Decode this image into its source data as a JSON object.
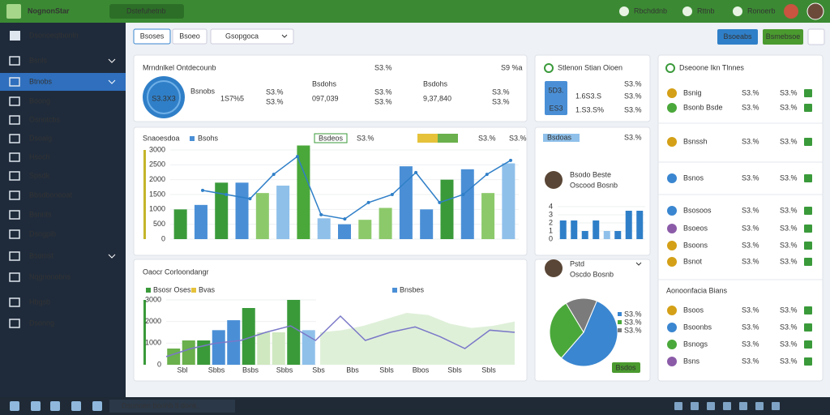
{
  "topbar": {
    "brand": "NognonStar",
    "selector": "Dstefuhetnb",
    "links": [
      "Rbchddnb",
      "Rttnb",
      "Ronoerb"
    ]
  },
  "sidebar": {
    "heading": "Dsonoeqtbonln",
    "items": [
      "Bsnls",
      "Btnobs",
      "Boong",
      "Osnotcbs",
      "Dsoalg",
      "Hsoch",
      "Spsdk",
      "Bbsdbonooat",
      "Bsnnts",
      "Dsngpib",
      "Bsomst",
      "Nqgnonobns",
      "Hbgsb",
      "Dsonng"
    ],
    "active": 1
  },
  "toolbar": {
    "tabs": [
      "Bsoses",
      "Bsoeo"
    ],
    "dropdown": "Gsopgoca",
    "buttons": [
      "Bsoeabs",
      "Bsmebsoe"
    ]
  },
  "kpi": {
    "title": "Mrndnlkel Ontdecounb",
    "donut_label": "S3.3X3",
    "stats": [
      {
        "label": "Bsnobs",
        "value": "1S7%5",
        "changes": [
          "S3.%",
          "S3.%"
        ]
      },
      {
        "label": "Bsdohs",
        "value": "097,039",
        "changes": [
          "S3.%",
          "S3.%"
        ],
        "top": "S3.%"
      },
      {
        "label": "Bsdohs",
        "value": "9,37,840",
        "changes": [
          "S3.%",
          "S3.%"
        ],
        "top": "S9 %a"
      }
    ]
  },
  "sales_chart": {
    "type": "bar",
    "title": "Snaoesdoa",
    "legend": "Bsohs",
    "pill": "Bsdeos",
    "pill_values": [
      "S3.%",
      "S3.%",
      "S3.%"
    ],
    "ylim": [
      0,
      3000
    ],
    "yticks": [
      0,
      500,
      1000,
      1500,
      2000,
      2500,
      3000
    ],
    "values": [
      1000,
      1150,
      1900,
      1900,
      1550,
      1800,
      3150,
      700,
      500,
      650,
      1050,
      2450,
      1000,
      2000,
      2350,
      1550,
      2550
    ],
    "bar_colors": [
      "#3a9a3a",
      "#4a8fd6",
      "#3a9a3a",
      "#4a8fd6",
      "#8cc96b",
      "#8fc0ea",
      "#4aa83a",
      "#8fc0ea",
      "#4a8fd6",
      "#8cc96b",
      "#8cc96b",
      "#4a8fd6",
      "#4a8fd6",
      "#3a9a3a",
      "#4a8fd6",
      "#8cc96b",
      "#8fc0ea"
    ],
    "line": [
      1640,
      1500,
      1360,
      2180,
      2780,
      820,
      680,
      1230,
      1500,
      2240,
      1230,
      1500,
      2180,
      2650
    ],
    "line_color": "#2f7fc8"
  },
  "overview_chart": {
    "type": "bar",
    "title": "Oaocr Corloondangr",
    "legend": [
      "Bsosr Oses",
      "Bvas",
      "Bnsbes"
    ],
    "ylim": [
      0,
      3000
    ],
    "yticks": [
      0,
      1000,
      2000,
      3000
    ],
    "categories": [
      "Sbl",
      "Sbbs",
      "Bsbs",
      "Sbbs",
      "Sbs",
      "Bbs",
      "Sbls",
      "Bbos",
      "Sbls",
      "Sbls"
    ],
    "values": [
      750,
      1125,
      1125,
      1600,
      2060,
      2625,
      1500,
      1500,
      3000,
      1600
    ],
    "bar_colors": [
      "#6ab04c",
      "#6ab04c",
      "#3a9a3a",
      "#4a8fd6",
      "#4a8fd6",
      "#3a9a3a",
      "#cfe8c0",
      "#cfe8c0",
      "#3a9a3a",
      "#8fc0ea"
    ],
    "area": [
      1500,
      1600,
      1800,
      2100,
      2400,
      2300,
      1900,
      1700,
      1800,
      2000
    ],
    "line": [
      375,
      750,
      1000,
      1125,
      1500,
      1800,
      1125,
      2250,
      1125,
      1500,
      1750,
      1300,
      750,
      1600,
      1500
    ]
  },
  "station": {
    "title": "Stlenon Stian Oioen",
    "box": [
      "5D3.",
      "ES3"
    ],
    "rows": [
      [
        "1.6S3.S",
        "S3.%"
      ],
      [
        "1.S3.S%",
        "S3.%"
      ]
    ],
    "top": "S3.%"
  },
  "team": {
    "dropdown": "Bsdoas",
    "value": "S3.%",
    "name": "Bsodo Beste",
    "role": "Oscood Bosnb",
    "ylim": [
      0,
      4
    ],
    "yticks": [
      0,
      1,
      2,
      3,
      4
    ],
    "values": [
      2.3,
      2.3,
      1,
      2.3,
      1,
      1,
      3.5,
      3.5
    ],
    "bar_colors": [
      "#2f7fc8",
      "#2f7fc8",
      "#2f7fc8",
      "#2f7fc8",
      "#8fc0ea",
      "#2f7fc8",
      "#2f7fc8",
      "#2f7fc8"
    ]
  },
  "share": {
    "type": "pie",
    "name": "Pstd",
    "role": "Oscdo Bosnb",
    "values": [
      55,
      30,
      15
    ],
    "colors": [
      "#3a86d0",
      "#4aa83a",
      "#7b7b7b"
    ],
    "labels": [
      "S3.%",
      "S3.%",
      "S3.%"
    ],
    "button": "Bsdos"
  },
  "list": {
    "title": "Dseoone Ikn Tlnnes",
    "section": "Aonoonfacia Bians",
    "rows": [
      {
        "name": "Bsnig",
        "v1": "S3.%",
        "v2": "S3.%",
        "c1": "#222",
        "c2": "#c0392b"
      },
      {
        "name": "Bsonb Bsde",
        "v1": "S3.%",
        "v2": "S3.%",
        "c1": "#c0392b",
        "c2": "#222"
      },
      {
        "name": "Bsnssh",
        "v1": "S3.%",
        "v2": "S3.%",
        "c1": "#2e8b2e",
        "c2": "#2e8b2e"
      },
      {
        "name": "Bsnos",
        "v1": "S3.%",
        "v2": "S3.%",
        "c1": "#222",
        "c2": "#222"
      },
      {
        "name": "Bsosoos",
        "v1": "S3.%",
        "v2": "S3.%",
        "c1": "#c0392b",
        "c2": "#2e8b2e"
      },
      {
        "name": "Bsoeos",
        "v1": "S3.%",
        "v2": "S3.%",
        "c1": "#222",
        "c2": "#222"
      },
      {
        "name": "Bsoons",
        "v1": "S3.%",
        "v2": "S3.%",
        "c1": "#c0392b",
        "c2": "#222"
      },
      {
        "name": "Bsnot",
        "v1": "S3.%",
        "v2": "S3.%",
        "c1": "#c0392b",
        "c2": "#c0392b"
      }
    ],
    "rows2": [
      {
        "name": "Bsoos",
        "v1": "S3.%",
        "v2": "S3.%",
        "c1": "#c0392b",
        "c2": "#222"
      },
      {
        "name": "Bsoonbs",
        "v1": "S3.%",
        "v2": "S3.%",
        "c1": "#2e8b2e",
        "c2": "#222"
      },
      {
        "name": "Bsnogs",
        "v1": "S3.%",
        "v2": "S3.%",
        "c1": "#2e8b2e",
        "c2": "#222"
      },
      {
        "name": "Bsns",
        "v1": "S3.%",
        "v2": "S3.%",
        "c1": "#c0392b",
        "c2": "#222"
      }
    ]
  },
  "taskbar": {
    "search": "Dsonoen boohb tl.donk."
  }
}
